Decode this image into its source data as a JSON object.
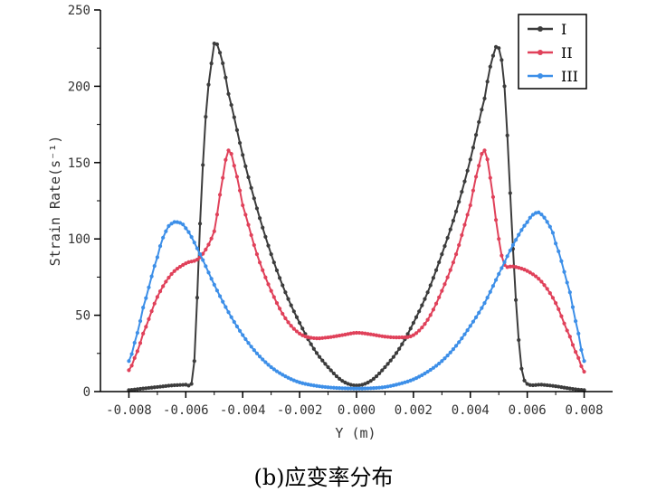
{
  "chart_data": {
    "type": "line",
    "title": "",
    "xlabel": "Y (m)",
    "ylabel": "Strain Rate(s⁻¹)",
    "xlim": [
      -0.009,
      0.009
    ],
    "ylim": [
      0,
      250
    ],
    "x_ticks": [
      -0.008,
      -0.006,
      -0.004,
      -0.002,
      0.0,
      0.002,
      0.004,
      0.006,
      0.008
    ],
    "x_tick_labels": [
      "-0.008",
      "-0.006",
      "-0.004",
      "-0.002",
      "0.000",
      "0.002",
      "0.004",
      "0.006",
      "0.008"
    ],
    "y_ticks": [
      0,
      50,
      100,
      150,
      200,
      250
    ],
    "y_tick_labels": [
      "0",
      "50",
      "100",
      "150",
      "200",
      "250"
    ],
    "grid": false,
    "legend_position": "top-right",
    "series": [
      {
        "name": "I",
        "color": "#3c3c3c",
        "points": [
          [
            -0.008,
            1
          ],
          [
            -0.0075,
            2
          ],
          [
            -0.007,
            3
          ],
          [
            -0.0065,
            4
          ],
          [
            -0.006,
            4.5
          ],
          [
            -0.0058,
            5
          ],
          [
            -0.0057,
            20
          ],
          [
            -0.0055,
            110
          ],
          [
            -0.0053,
            180
          ],
          [
            -0.0051,
            215
          ],
          [
            -0.005,
            228
          ],
          [
            -0.0048,
            222
          ],
          [
            -0.0045,
            195
          ],
          [
            -0.004,
            155
          ],
          [
            -0.0035,
            120
          ],
          [
            -0.003,
            90
          ],
          [
            -0.0025,
            65
          ],
          [
            -0.002,
            45
          ],
          [
            -0.0015,
            28
          ],
          [
            -0.001,
            16
          ],
          [
            -0.0005,
            7
          ],
          [
            0.0,
            4
          ],
          [
            0.0005,
            7
          ],
          [
            0.001,
            16
          ],
          [
            0.0015,
            28
          ],
          [
            0.002,
            45
          ],
          [
            0.0025,
            65
          ],
          [
            0.003,
            90
          ],
          [
            0.0035,
            118
          ],
          [
            0.004,
            152
          ],
          [
            0.0045,
            192
          ],
          [
            0.0048,
            220
          ],
          [
            0.005,
            225
          ],
          [
            0.0052,
            200
          ],
          [
            0.0054,
            130
          ],
          [
            0.0056,
            60
          ],
          [
            0.0058,
            15
          ],
          [
            0.006,
            5
          ],
          [
            0.0065,
            4.5
          ],
          [
            0.007,
            3.5
          ],
          [
            0.0075,
            2
          ],
          [
            0.008,
            1
          ]
        ]
      },
      {
        "name": "II",
        "color": "#e0415a",
        "points": [
          [
            -0.008,
            14
          ],
          [
            -0.0078,
            22
          ],
          [
            -0.0075,
            38
          ],
          [
            -0.007,
            62
          ],
          [
            -0.0065,
            77
          ],
          [
            -0.006,
            84
          ],
          [
            -0.0055,
            88
          ],
          [
            -0.005,
            105
          ],
          [
            -0.0047,
            140
          ],
          [
            -0.0045,
            158
          ],
          [
            -0.0043,
            148
          ],
          [
            -0.004,
            122
          ],
          [
            -0.0035,
            90
          ],
          [
            -0.003,
            66
          ],
          [
            -0.0025,
            48
          ],
          [
            -0.002,
            38
          ],
          [
            -0.0015,
            35
          ],
          [
            -0.001,
            35.5
          ],
          [
            -0.0005,
            37
          ],
          [
            0.0,
            38.5
          ],
          [
            0.0005,
            37.5
          ],
          [
            0.001,
            36
          ],
          [
            0.0015,
            35.5
          ],
          [
            0.002,
            37
          ],
          [
            0.0025,
            47
          ],
          [
            0.003,
            66
          ],
          [
            0.0035,
            90
          ],
          [
            0.004,
            122
          ],
          [
            0.0043,
            148
          ],
          [
            0.0045,
            158
          ],
          [
            0.0047,
            140
          ],
          [
            0.005,
            100
          ],
          [
            0.0052,
            83
          ],
          [
            0.0055,
            82
          ],
          [
            0.006,
            79
          ],
          [
            0.0065,
            72
          ],
          [
            0.007,
            58
          ],
          [
            0.0075,
            36
          ],
          [
            0.0078,
            22
          ],
          [
            0.008,
            13
          ]
        ]
      },
      {
        "name": "III",
        "color": "#3d8fe8",
        "points": [
          [
            -0.008,
            20
          ],
          [
            -0.0078,
            32
          ],
          [
            -0.0075,
            55
          ],
          [
            -0.007,
            88
          ],
          [
            -0.0067,
            105
          ],
          [
            -0.0065,
            110
          ],
          [
            -0.0063,
            111
          ],
          [
            -0.006,
            107
          ],
          [
            -0.0055,
            90
          ],
          [
            -0.005,
            70
          ],
          [
            -0.0045,
            52
          ],
          [
            -0.004,
            37
          ],
          [
            -0.0035,
            25
          ],
          [
            -0.003,
            16
          ],
          [
            -0.0025,
            10
          ],
          [
            -0.002,
            6
          ],
          [
            -0.0015,
            4
          ],
          [
            -0.001,
            2.8
          ],
          [
            -0.0005,
            2.2
          ],
          [
            0.0,
            2
          ],
          [
            0.0005,
            2.2
          ],
          [
            0.001,
            3
          ],
          [
            0.0015,
            5
          ],
          [
            0.002,
            8
          ],
          [
            0.0025,
            13
          ],
          [
            0.003,
            20
          ],
          [
            0.0035,
            30
          ],
          [
            0.004,
            43
          ],
          [
            0.0045,
            58
          ],
          [
            0.005,
            77
          ],
          [
            0.0055,
            96
          ],
          [
            0.006,
            111
          ],
          [
            0.0063,
            117
          ],
          [
            0.0065,
            116
          ],
          [
            0.0068,
            108
          ],
          [
            0.007,
            97
          ],
          [
            0.0075,
            65
          ],
          [
            0.0078,
            38
          ],
          [
            0.008,
            20
          ]
        ]
      }
    ]
  },
  "caption": "(b)应变率分布"
}
